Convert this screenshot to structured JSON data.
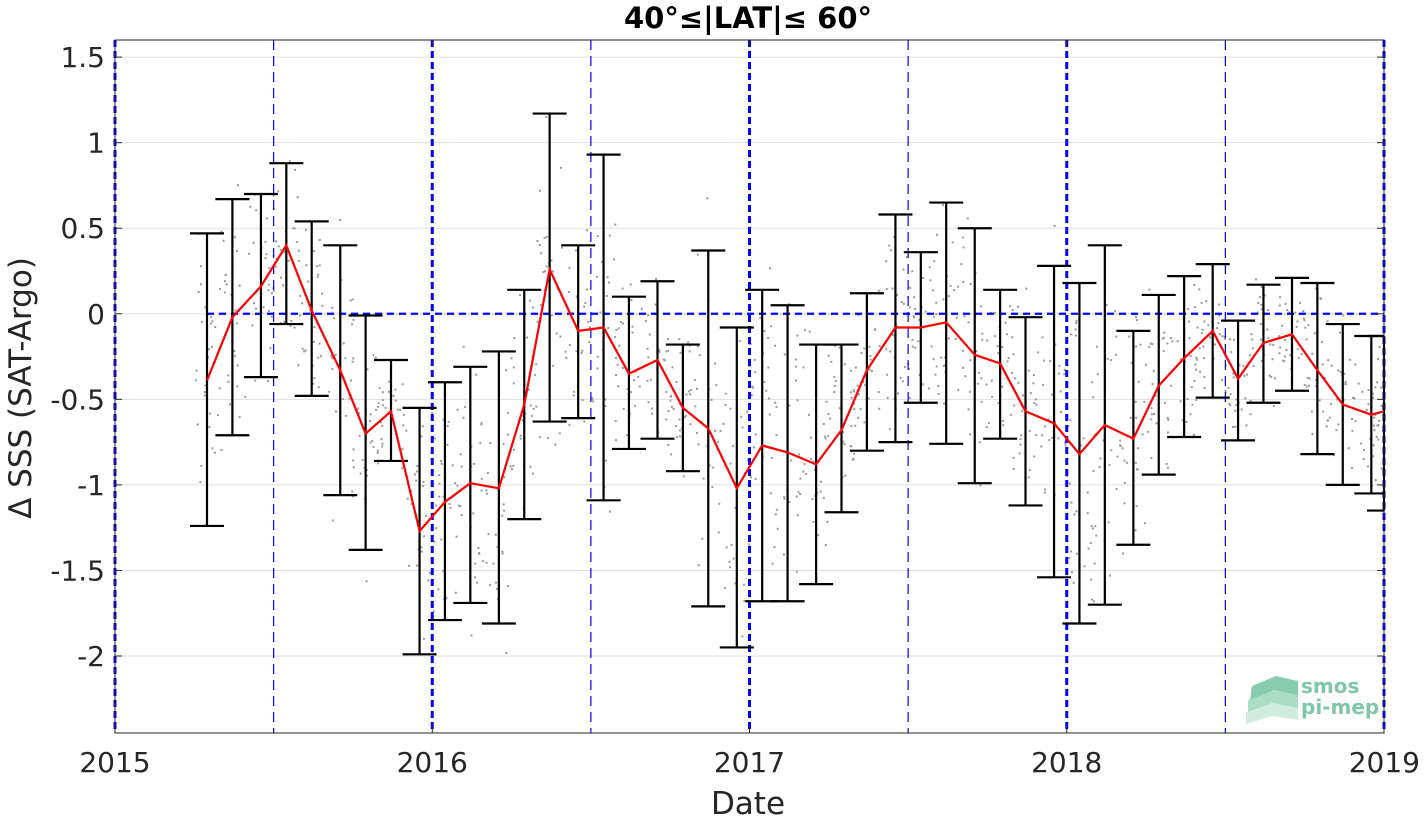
{
  "chart_data": {
    "type": "line",
    "title": "40°≤|LAT|≤ 60°",
    "xlabel": "Date",
    "ylabel": "Δ SSS (SAT-Argo)",
    "xlim": [
      2015.0,
      2019.0
    ],
    "ylim": [
      -2.45,
      1.6
    ],
    "x_ticks": [
      2015,
      2016,
      2017,
      2018,
      2019
    ],
    "x_tick_labels": [
      "2015",
      "2016",
      "2017",
      "2018",
      "2019"
    ],
    "y_ticks": [
      1.5,
      1,
      0.5,
      0,
      -0.5,
      -1,
      -1.5,
      -2
    ],
    "y_tick_labels": [
      "1.5",
      "1",
      "0.5",
      "0",
      "-0.5",
      "-1",
      "-1.5",
      "-2"
    ],
    "grid": true,
    "colors": {
      "mean_line": "#ff0000",
      "error_bars": "#000000",
      "reference": "#0000ff",
      "scatter": "#9a9a9a"
    },
    "year_lines": [
      2015,
      2016,
      2017,
      2018,
      2019
    ],
    "half_year_lines": [
      2015.5,
      2016.5,
      2017.5,
      2018.5
    ],
    "zero_line": {
      "y": 0,
      "x_start": 2015.29,
      "x_end": 2019.0
    },
    "series": [
      {
        "x": [
          2015.29,
          2015.37,
          2015.46,
          2015.54,
          2015.62,
          2015.71,
          2015.79,
          2015.87,
          2015.96,
          2016.04,
          2016.12,
          2016.21,
          2016.29,
          2016.37,
          2016.46,
          2016.54,
          2016.62,
          2016.71,
          2016.79,
          2016.87,
          2016.96,
          2017.04,
          2017.12,
          2017.21,
          2017.29,
          2017.37,
          2017.46,
          2017.54,
          2017.62,
          2017.71,
          2017.79,
          2017.87,
          2017.96,
          2018.04,
          2018.12,
          2018.21,
          2018.29,
          2018.37,
          2018.46,
          2018.54,
          2018.62,
          2018.71,
          2018.79,
          2018.87,
          2018.96,
          2019.0
        ],
        "y": [
          -0.39,
          -0.02,
          0.16,
          0.4,
          0.02,
          -0.33,
          -0.7,
          -0.57,
          -1.27,
          -1.1,
          -0.99,
          -1.02,
          -0.53,
          0.26,
          -0.1,
          -0.08,
          -0.35,
          -0.27,
          -0.55,
          -0.67,
          -1.02,
          -0.77,
          -0.81,
          -0.88,
          -0.68,
          -0.33,
          -0.08,
          -0.08,
          -0.05,
          -0.24,
          -0.29,
          -0.57,
          -0.64,
          -0.82,
          -0.65,
          -0.73,
          -0.42,
          -0.26,
          -0.1,
          -0.38,
          -0.17,
          -0.12,
          -0.33,
          -0.53,
          -0.59,
          -0.57
        ],
        "y_upper": [
          0.47,
          0.67,
          0.7,
          0.88,
          0.54,
          0.4,
          -0.01,
          -0.27,
          -0.55,
          -0.4,
          -0.31,
          -0.22,
          0.14,
          1.17,
          0.4,
          0.93,
          0.1,
          0.19,
          -0.18,
          0.37,
          -0.08,
          0.14,
          0.05,
          -0.18,
          -0.18,
          0.12,
          0.58,
          0.36,
          0.65,
          0.5,
          0.14,
          -0.02,
          0.28,
          0.18,
          0.4,
          -0.1,
          0.11,
          0.22,
          0.29,
          -0.04,
          0.17,
          0.21,
          0.18,
          -0.06,
          -0.13,
          -0.13
        ],
        "y_lower": [
          -1.24,
          -0.71,
          -0.37,
          -0.06,
          -0.48,
          -1.06,
          -1.38,
          -0.86,
          -1.99,
          -1.79,
          -1.69,
          -1.81,
          -1.2,
          -0.63,
          -0.61,
          -1.09,
          -0.79,
          -0.73,
          -0.92,
          -1.71,
          -1.95,
          -1.68,
          -1.68,
          -1.58,
          -1.16,
          -0.8,
          -0.75,
          -0.52,
          -0.76,
          -0.99,
          -0.73,
          -1.12,
          -1.54,
          -1.81,
          -1.7,
          -1.35,
          -0.94,
          -0.72,
          -0.49,
          -0.74,
          -0.52,
          -0.45,
          -0.82,
          -1.0,
          -1.05,
          -1.15
        ]
      }
    ]
  },
  "logo": {
    "line1": "smos",
    "line2": "pi-mep"
  }
}
